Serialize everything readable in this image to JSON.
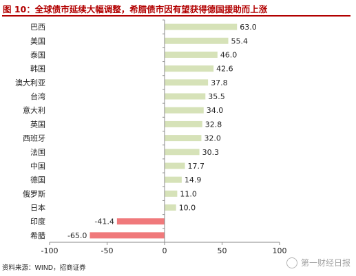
{
  "title": "图 10：全球债市延续大幅调整，希腊债市因有望获得德国援助而上涨",
  "source": "资料来源：WIND，招商证券",
  "watermark": "第一财经日报",
  "colors": {
    "title": "#b20000",
    "positive_bar": "#d6e2b8",
    "negative_bar": "#f0797b",
    "axis": "#888888"
  },
  "chart_data": {
    "type": "bar",
    "orientation": "horizontal",
    "title": "图 10：全球债市延续大幅调整，希腊债市因有望获得德国援助而上涨",
    "xlabel": "",
    "ylabel": "",
    "xlim": [
      -100,
      100
    ],
    "xticks": [
      -100,
      -50,
      0,
      50,
      100
    ],
    "grid": false,
    "categories": [
      "巴西",
      "美国",
      "泰国",
      "韩国",
      "澳大利亚",
      "台湾",
      "意大利",
      "英国",
      "西班牙",
      "法国",
      "中国",
      "德国",
      "俄罗斯",
      "日本",
      "印度",
      "希腊"
    ],
    "values": [
      63.0,
      55.4,
      46.0,
      42.6,
      37.8,
      35.5,
      34.0,
      32.8,
      32.0,
      30.3,
      17.7,
      14.9,
      11.0,
      10.0,
      -41.4,
      -65.0
    ]
  }
}
